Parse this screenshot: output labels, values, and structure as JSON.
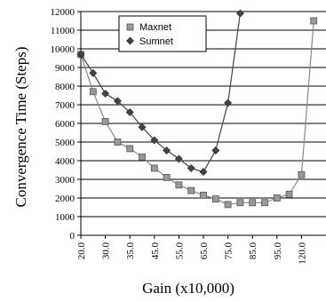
{
  "chart_data": {
    "type": "line",
    "xlabel": "Gain (x10,000)",
    "ylabel": "Convergence Time (Steps)",
    "ylim": [
      0,
      12000
    ],
    "y_ticks": [
      0,
      1000,
      2000,
      3000,
      4000,
      5000,
      6000,
      7000,
      8000,
      9000,
      10000,
      11000,
      12000
    ],
    "x_tick_labels": [
      "20.0",
      "30.0",
      "35.0",
      "45.0",
      "55.0",
      "65.0",
      "75.0",
      "85.0",
      "95.0",
      "120.0"
    ],
    "grid": "horizontal",
    "legend_position": "top-left",
    "series": [
      {
        "name": "Maxnet",
        "marker": "square",
        "color": "#999999",
        "line_color": "#888888",
        "points": [
          {
            "slot": 0,
            "y": 9700
          },
          {
            "slot": 1,
            "y": 7700
          },
          {
            "slot": 2,
            "y": 6100
          },
          {
            "slot": 3,
            "y": 5000
          },
          {
            "slot": 4,
            "y": 4650
          },
          {
            "slot": 5,
            "y": 4200
          },
          {
            "slot": 6,
            "y": 3600
          },
          {
            "slot": 7,
            "y": 3100
          },
          {
            "slot": 8,
            "y": 2700
          },
          {
            "slot": 9,
            "y": 2400
          },
          {
            "slot": 10,
            "y": 2150
          },
          {
            "slot": 11,
            "y": 1950
          },
          {
            "slot": 12,
            "y": 1650
          },
          {
            "slot": 13,
            "y": 1750
          },
          {
            "slot": 14,
            "y": 1750
          },
          {
            "slot": 15,
            "y": 1750
          },
          {
            "slot": 16,
            "y": 2000
          },
          {
            "slot": 17,
            "y": 2200
          },
          {
            "slot": 18,
            "y": 3250
          },
          {
            "slot": 19,
            "y": 11500
          }
        ]
      },
      {
        "name": "Sumnet",
        "marker": "diamond",
        "color": "#444444",
        "line_color": "#444444",
        "points": [
          {
            "slot": 0,
            "y": 9700
          },
          {
            "slot": 1,
            "y": 8700
          },
          {
            "slot": 2,
            "y": 7600
          },
          {
            "slot": 3,
            "y": 7200
          },
          {
            "slot": 4,
            "y": 6600
          },
          {
            "slot": 5,
            "y": 5800
          },
          {
            "slot": 6,
            "y": 5100
          },
          {
            "slot": 7,
            "y": 4550
          },
          {
            "slot": 8,
            "y": 4100
          },
          {
            "slot": 9,
            "y": 3600
          },
          {
            "slot": 10,
            "y": 3400
          },
          {
            "slot": 11,
            "y": 4550
          },
          {
            "slot": 12,
            "y": 7100
          },
          {
            "slot": 13,
            "y": 11900
          }
        ]
      }
    ]
  }
}
